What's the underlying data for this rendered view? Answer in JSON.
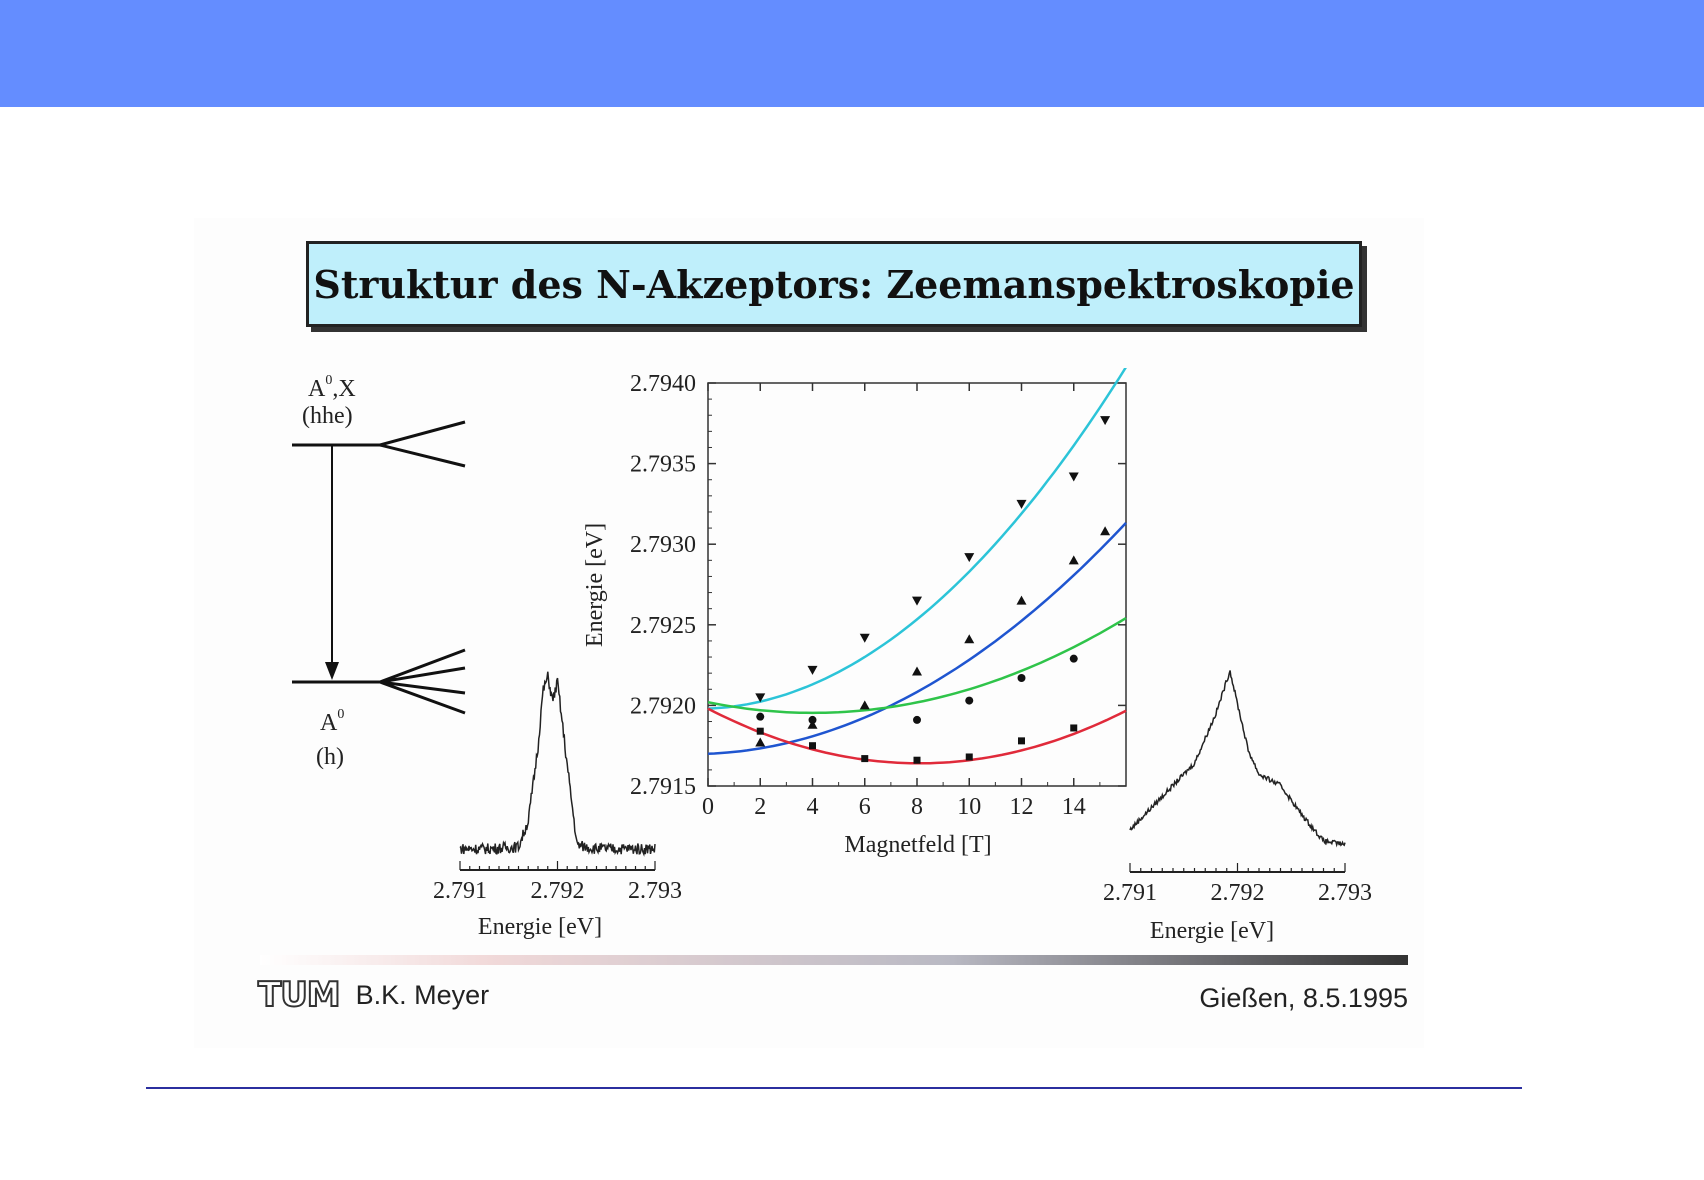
{
  "slide": {
    "title": "Struktur des N-Akzeptors: Zeemanspektroskopie",
    "author": "B.K. Meyer",
    "place_date": "Gießen, 8.5.1995",
    "logo": "TUM",
    "header_color": "#648dff",
    "title_box_color": "#bfeffb"
  },
  "level_diagram": {
    "upper_label": "A",
    "upper_sup": "0",
    "upper_suffix": ",X",
    "upper_sub": "(hhe)",
    "lower_label": "A",
    "lower_sup": "0",
    "lower_sub": "(h)"
  },
  "chart_data": [
    {
      "type": "scatter",
      "xlabel": "Magnetfeld [T]",
      "ylabel": "Energie [eV]",
      "xlim": [
        0,
        16
      ],
      "ylim": [
        2.7915,
        2.794
      ],
      "xticks": [
        0,
        2,
        4,
        6,
        8,
        10,
        12,
        14
      ],
      "yticks": [
        "2.7915",
        "2.7920",
        "2.7925",
        "2.7930",
        "2.7935",
        "2.7940"
      ],
      "series": [
        {
          "marker": "triangle-down",
          "color": "#2cc4d8",
          "x": [
            2,
            4,
            6,
            8,
            10,
            12,
            14,
            15.2
          ],
          "y": [
            2.79205,
            2.79222,
            2.79242,
            2.79265,
            2.79292,
            2.79325,
            2.79342,
            2.79377
          ],
          "fit": [
            2.79198,
            6e-06,
            7.9e-06
          ]
        },
        {
          "marker": "triangle-up",
          "color": "#1f55d0",
          "x": [
            2,
            4,
            6,
            8,
            10,
            12,
            14,
            15.2
          ],
          "y": [
            2.79177,
            2.79188,
            2.792,
            2.79221,
            2.79241,
            2.79265,
            2.7929,
            2.79308
          ],
          "fit": [
            2.7917,
            6.3e-06,
            5.2e-06
          ]
        },
        {
          "marker": "circle",
          "color": "#2fc44a",
          "x": [
            2,
            4,
            8,
            10,
            12,
            14
          ],
          "y": [
            2.79193,
            2.79191,
            2.79191,
            2.79203,
            2.79217,
            2.79229
          ],
          "fit": [
            2.79202,
            -3.3e-05,
            4.1e-06
          ]
        },
        {
          "marker": "square",
          "color": "#e02a3a",
          "x": [
            2,
            4,
            6,
            8,
            10,
            12,
            14
          ],
          "y": [
            2.79184,
            2.79175,
            2.79167,
            2.79166,
            2.79168,
            2.79178,
            2.79186
          ],
          "fit": [
            2.79198,
            -8.4e-05,
            5.2e-06
          ]
        }
      ]
    },
    {
      "type": "line",
      "xlabel": "Energie [eV]",
      "xticks": [
        "2.791",
        "2.792",
        "2.793"
      ],
      "x": [
        2.791,
        2.7913,
        2.7916,
        2.7917,
        2.7918,
        2.79185,
        2.7919,
        2.79195,
        2.792,
        2.7921,
        2.7922,
        2.7924,
        2.7927,
        2.793
      ],
      "y": [
        0.05,
        0.05,
        0.06,
        0.2,
        0.6,
        0.9,
        0.98,
        0.85,
        0.95,
        0.5,
        0.07,
        0.05,
        0.05,
        0.05
      ]
    },
    {
      "type": "line",
      "xlabel": "Energie [eV]",
      "xticks": [
        "2.791",
        "2.792",
        "2.793"
      ],
      "x": [
        2.791,
        2.7913,
        2.7916,
        2.7918,
        2.79193,
        2.792,
        2.7921,
        2.7922,
        2.7924,
        2.7926,
        2.7928,
        2.793
      ],
      "y": [
        0.12,
        0.3,
        0.48,
        0.75,
        0.98,
        0.8,
        0.55,
        0.42,
        0.36,
        0.2,
        0.06,
        0.04
      ]
    }
  ]
}
